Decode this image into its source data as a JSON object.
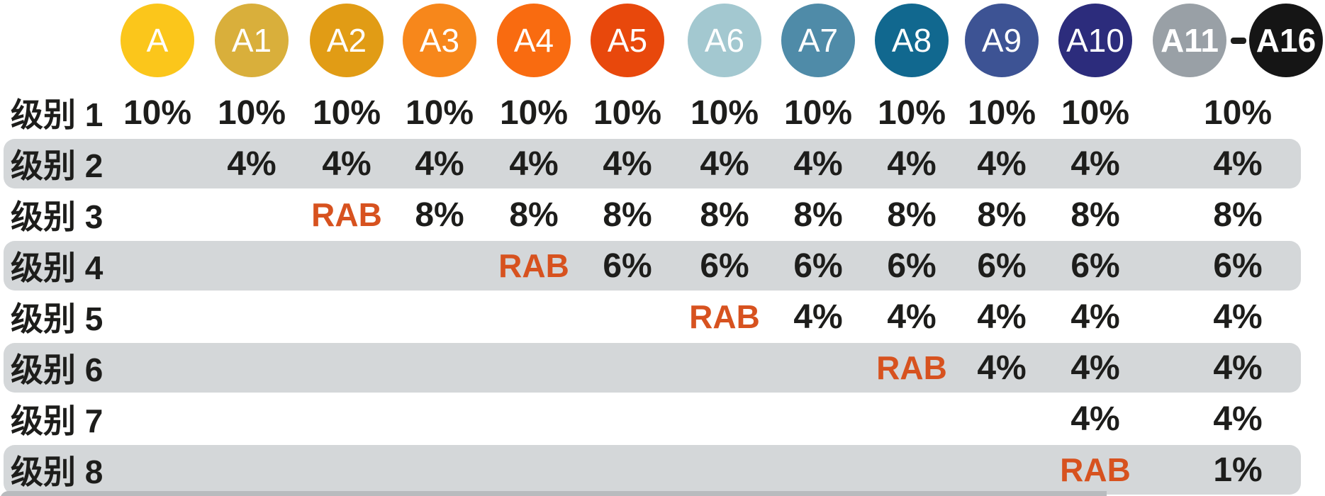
{
  "header": {
    "circles": [
      {
        "label": "A",
        "color": "#FBC61B"
      },
      {
        "label": "A1",
        "color": "#D9AF3B"
      },
      {
        "label": "A2",
        "color": "#E19C15"
      },
      {
        "label": "A3",
        "color": "#F7871B"
      },
      {
        "label": "A4",
        "color": "#F96B10"
      },
      {
        "label": "A5",
        "color": "#E8480C"
      },
      {
        "label": "A6",
        "color": "#A3C8D0"
      },
      {
        "label": "A7",
        "color": "#4F8BA8"
      },
      {
        "label": "A8",
        "color": "#11688F"
      },
      {
        "label": "A9",
        "color": "#3D5394"
      },
      {
        "label": "A10",
        "color": "#2C2C7C"
      },
      {
        "label": "A11",
        "color": "#99A0A6"
      },
      {
        "label": "A16",
        "color": "#151515"
      }
    ],
    "separator": "-"
  },
  "chart_data": {
    "type": "table",
    "columns": [
      "A",
      "A1",
      "A2",
      "A3",
      "A4",
      "A5",
      "A6",
      "A7",
      "A8",
      "A9",
      "A10",
      "A11-A16"
    ],
    "rows": [
      {
        "label": "级别 1",
        "values": [
          "10%",
          "10%",
          "10%",
          "10%",
          "10%",
          "10%",
          "10%",
          "10%",
          "10%",
          "10%",
          "10%",
          "10%"
        ]
      },
      {
        "label": "级别 2",
        "values": [
          "",
          "4%",
          "4%",
          "4%",
          "4%",
          "4%",
          "4%",
          "4%",
          "4%",
          "4%",
          "4%",
          "4%"
        ]
      },
      {
        "label": "级别 3",
        "values": [
          "",
          "",
          "RAB",
          "8%",
          "8%",
          "8%",
          "8%",
          "8%",
          "8%",
          "8%",
          "8%",
          "8%"
        ]
      },
      {
        "label": "级别 4",
        "values": [
          "",
          "",
          "",
          "",
          "RAB",
          "6%",
          "6%",
          "6%",
          "6%",
          "6%",
          "6%",
          "6%"
        ]
      },
      {
        "label": "级别 5",
        "values": [
          "",
          "",
          "",
          "",
          "",
          "",
          "RAB",
          "4%",
          "4%",
          "4%",
          "4%",
          "4%"
        ]
      },
      {
        "label": "级别 6",
        "values": [
          "",
          "",
          "",
          "",
          "",
          "",
          "",
          "",
          "RAB",
          "4%",
          "4%",
          "4%"
        ]
      },
      {
        "label": "级别 7",
        "values": [
          "",
          "",
          "",
          "",
          "",
          "",
          "",
          "",
          "",
          "",
          "4%",
          "4%"
        ]
      },
      {
        "label": "级别 8",
        "values": [
          "",
          "",
          "",
          "",
          "",
          "",
          "",
          "",
          "",
          "",
          "RAB",
          "1%"
        ]
      }
    ],
    "special_cell_label": "RAB",
    "layout_hints": {
      "shaded_rows": [
        "级别 2",
        "级别 4",
        "级别 6",
        "级别 8"
      ],
      "merged_last_column": "A11-A16"
    }
  },
  "colors": {
    "row_shade": "#d4d7d9",
    "rab_text": "#d7521f",
    "value_text": "#1d1d1b",
    "next_row_peek": "#b8bbbe"
  }
}
